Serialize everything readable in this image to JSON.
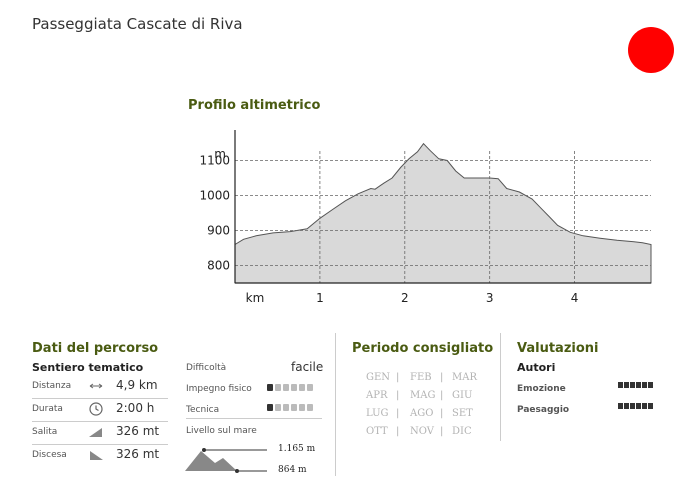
{
  "header": {
    "title": "Passeggiata Cascate di Riva"
  },
  "colors": {
    "accent": "#4a5b12",
    "red_dot": "#ff0000",
    "profile_fill": "#d9d9d9",
    "dot_on": "#333333",
    "dot_off": "#bbbbbb",
    "month_off": "#b3b3b3"
  },
  "profile": {
    "title": "Profilo altimetrico",
    "y_unit": "m",
    "x_unit": "km"
  },
  "chart_data": {
    "type": "area",
    "title": "Profilo altimetrico",
    "xlabel": "km",
    "ylabel": "m",
    "x_ticks": [
      1,
      2,
      3,
      4
    ],
    "y_ticks": [
      800,
      900,
      1000,
      1100
    ],
    "xlim": [
      0,
      4.9
    ],
    "ylim": [
      750,
      1170
    ],
    "grid": true,
    "series": [
      {
        "x": [
          0,
          0.1,
          0.25,
          0.45,
          0.65,
          0.85,
          1.0,
          1.15,
          1.3,
          1.45,
          1.6,
          1.65,
          1.75,
          1.85,
          1.95,
          2.05,
          2.15,
          2.22,
          2.3,
          2.4,
          2.5,
          2.6,
          2.7,
          2.85,
          3.0,
          3.1,
          3.2,
          3.35,
          3.5,
          3.6,
          3.7,
          3.8,
          3.95,
          4.1,
          4.3,
          4.5,
          4.7,
          4.8,
          4.9
        ],
        "y": [
          860,
          875,
          885,
          893,
          897,
          905,
          935,
          960,
          985,
          1005,
          1020,
          1018,
          1035,
          1050,
          1080,
          1105,
          1125,
          1148,
          1128,
          1105,
          1100,
          1070,
          1050,
          1050,
          1050,
          1048,
          1020,
          1010,
          990,
          965,
          940,
          915,
          895,
          885,
          878,
          872,
          868,
          865,
          860
        ]
      }
    ]
  },
  "percorso": {
    "title": "Dati del percorso",
    "subtitle": "Sentiero tematico",
    "rows": [
      {
        "label": "Distanza",
        "icon": "distance-arrows-icon",
        "value": "4,9  km"
      },
      {
        "label": "Durata",
        "icon": "clock-icon",
        "value": "2:00  h"
      },
      {
        "label": "Salita",
        "icon": "ascent-icon",
        "value": "326  mt"
      },
      {
        "label": "Discesa",
        "icon": "descent-icon",
        "value": "326  mt"
      }
    ],
    "difficolta_label": "Difficoltà",
    "difficolta_value": "facile",
    "impegno_label": "Impegno fisico",
    "impegno_level": 1,
    "tecnica_label": "Tecnica",
    "tecnica_level": 1,
    "scale_max": 6,
    "livello_label": "Livello sul mare",
    "max_alt": "1.165 m",
    "min_alt": "864 m"
  },
  "periodo": {
    "title": "Periodo consigliato",
    "months": [
      [
        "GEN",
        "FEB",
        "MAR"
      ],
      [
        "APR",
        "MAG",
        "GIU"
      ],
      [
        "LUG",
        "AGO",
        "SET"
      ],
      [
        "OTT",
        "NOV",
        "DIC"
      ]
    ]
  },
  "valutazioni": {
    "title": "Valutazioni",
    "subtitle": "Autori",
    "items": [
      {
        "label": "Emozione",
        "score": 6,
        "max": 6
      },
      {
        "label": "Paesaggio",
        "score": 6,
        "max": 6
      }
    ]
  }
}
